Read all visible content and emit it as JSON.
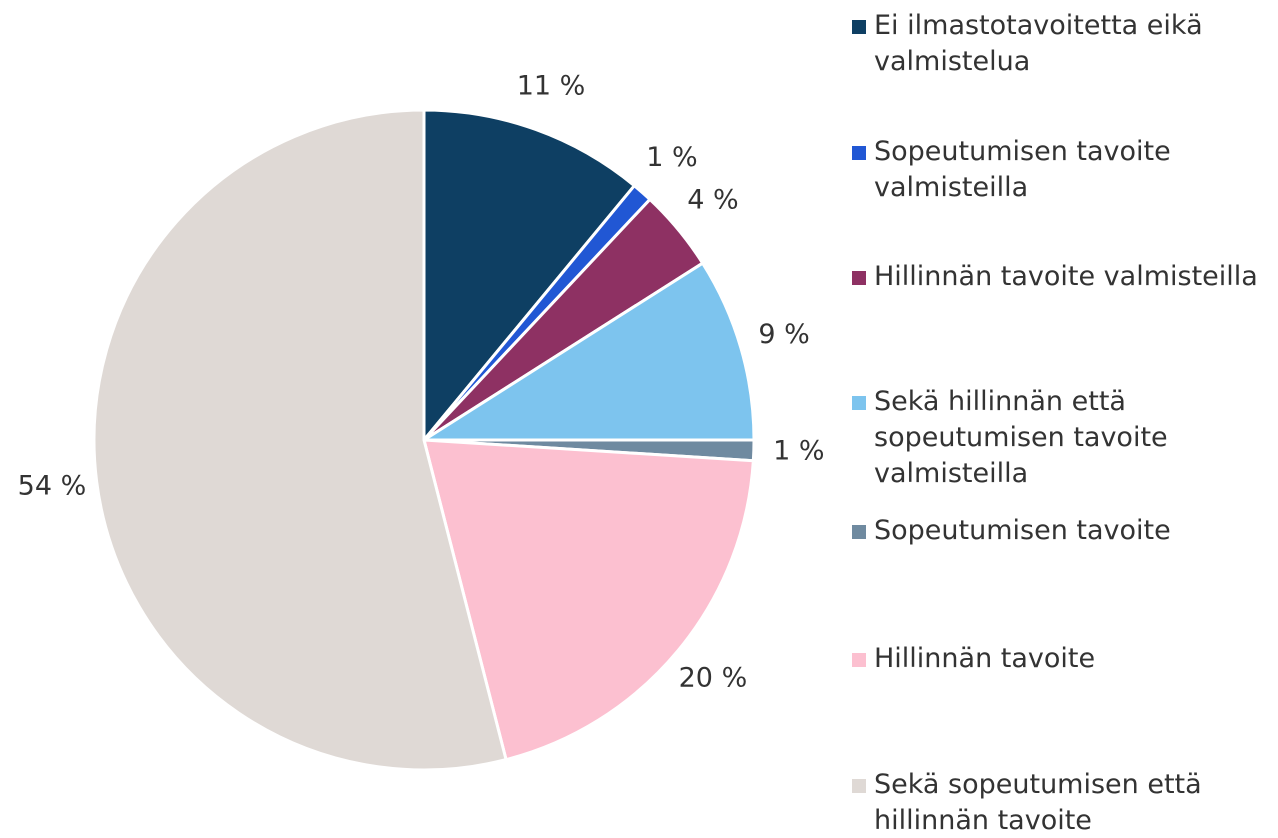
{
  "chart_data": {
    "type": "pie",
    "categories": [
      "Ei ilmastotavoitetta eikä valmistelua",
      "Sopeutumisen tavoite valmisteilla",
      "Hillinnän tavoite valmisteilla",
      "Sekä hillinnän että sopeutumisen tavoite valmisteilla",
      "Sopeutumisen tavoite",
      "Hillinnän tavoite",
      "Sekä sopeutumisen että hillinnän tavoite"
    ],
    "values": [
      11,
      1,
      4,
      9,
      1,
      20,
      54
    ],
    "value_labels": [
      "11 %",
      "1 %",
      "4 %",
      "9 %",
      "1 %",
      "20 %",
      "54 %"
    ],
    "colors": [
      "#0e3f63",
      "#2157d4",
      "#8e3163",
      "#7dc4ee",
      "#6f8aa0",
      "#fcc0d0",
      "#dfd9d5"
    ],
    "legend": "right"
  }
}
